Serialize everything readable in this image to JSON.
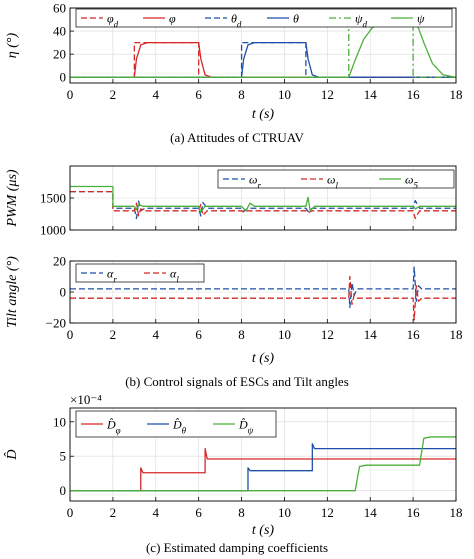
{
  "colors": {
    "red": "#d62728",
    "blue": "#1f4fa8",
    "green": "#4caf3a",
    "axis": "#000000",
    "grid": "#d9d9d9"
  },
  "captions": {
    "a": "(a) Attitudes of CTRUAV",
    "b": "(b) Control signals of ESCs and Tilt angles",
    "c": "(c) Estimated damping coefficients"
  },
  "chart_data": [
    {
      "id": "attitudes",
      "type": "line",
      "xlabel": "t (s)",
      "ylabel": "η (°)",
      "xlim": [
        0,
        18
      ],
      "ylim": [
        -5,
        60
      ],
      "xticks": [
        0,
        2,
        4,
        6,
        8,
        10,
        12,
        14,
        16,
        18
      ],
      "yticks": [
        0,
        20,
        40,
        60
      ],
      "grid": true,
      "legend_position": "top",
      "series": [
        {
          "name": "φ_d",
          "color": "red",
          "dash": "dash",
          "x": [
            0,
            3,
            3,
            6,
            6,
            18
          ],
          "y": [
            0,
            0,
            30,
            30,
            0,
            0
          ]
        },
        {
          "name": "φ",
          "color": "red",
          "dash": "solid",
          "x": [
            0,
            3.0,
            3.1,
            3.3,
            3.6,
            6.0,
            6.1,
            6.3,
            6.6,
            18
          ],
          "y": [
            0,
            0,
            16,
            28,
            30,
            30,
            16,
            2,
            0,
            0
          ]
        },
        {
          "name": "θ_d",
          "color": "blue",
          "dash": "dash",
          "x": [
            0,
            8,
            8,
            11,
            11,
            18
          ],
          "y": [
            0,
            0,
            30,
            30,
            0,
            0
          ]
        },
        {
          "name": "θ",
          "color": "blue",
          "dash": "solid",
          "x": [
            0,
            8.0,
            8.1,
            8.3,
            8.6,
            11.0,
            11.1,
            11.3,
            11.6,
            18
          ],
          "y": [
            0,
            0,
            16,
            28,
            30,
            30,
            16,
            2,
            0,
            0
          ]
        },
        {
          "name": "ψ_d",
          "color": "green",
          "dash": "dashdot",
          "x": [
            0,
            13,
            13,
            16,
            16,
            18
          ],
          "y": [
            0,
            0,
            50,
            50,
            0,
            0
          ]
        },
        {
          "name": "ψ",
          "color": "green",
          "dash": "solid",
          "x": [
            0,
            13.0,
            13.3,
            13.7,
            14.1,
            14.6,
            15.2,
            16.0,
            16.2,
            16.5,
            16.9,
            17.4,
            18
          ],
          "y": [
            0,
            0,
            15,
            33,
            43,
            48,
            50,
            50,
            45,
            30,
            12,
            2,
            0
          ]
        }
      ]
    },
    {
      "id": "pwm",
      "type": "line",
      "xlabel": "",
      "ylabel": "PWM (μs)",
      "xlim": [
        0,
        18
      ],
      "ylim": [
        1000,
        2000
      ],
      "xticks": [
        0,
        2,
        4,
        6,
        8,
        10,
        12,
        14,
        16,
        18
      ],
      "yticks": [
        1000,
        1500
      ],
      "grid": true,
      "legend_position": "top-right",
      "series": [
        {
          "name": "ω_r",
          "color": "blue",
          "dash": "dash",
          "x": [
            0,
            2,
            2,
            3,
            3.1,
            3.2,
            3.3,
            3.5,
            6,
            6.1,
            6.2,
            6.4,
            8,
            8.1,
            8.3,
            11,
            11.1,
            11.3,
            13,
            13.2,
            16,
            16.1,
            16.3,
            18
          ],
          "y": [
            1600,
            1600,
            1340,
            1340,
            1180,
            1450,
            1300,
            1340,
            1340,
            1220,
            1430,
            1340,
            1340,
            1290,
            1340,
            1340,
            1290,
            1340,
            1340,
            1340,
            1340,
            1460,
            1340,
            1340
          ]
        },
        {
          "name": "ω_l",
          "color": "red",
          "dash": "dash",
          "x": [
            0,
            2,
            2,
            3,
            3.1,
            3.2,
            3.3,
            3.5,
            6,
            6.1,
            6.2,
            6.4,
            8,
            8.1,
            8.3,
            11,
            11.1,
            11.3,
            16,
            16.1,
            16.3,
            18
          ],
          "y": [
            1600,
            1600,
            1300,
            1300,
            1420,
            1220,
            1330,
            1300,
            1300,
            1400,
            1230,
            1300,
            1300,
            1280,
            1300,
            1300,
            1270,
            1300,
            1300,
            1180,
            1300,
            1300
          ]
        },
        {
          "name": "ω_5",
          "color": "green",
          "dash": "solid",
          "x": [
            0,
            2,
            2,
            3,
            3.1,
            3.2,
            3.4,
            6,
            6.1,
            6.3,
            8,
            8.2,
            8.4,
            8.6,
            11,
            11.1,
            11.2,
            11.4,
            13,
            13.2,
            16,
            16.1,
            16.3,
            18
          ],
          "y": [
            1680,
            1680,
            1370,
            1370,
            1320,
            1400,
            1370,
            1370,
            1280,
            1370,
            1370,
            1300,
            1420,
            1370,
            1370,
            1510,
            1300,
            1370,
            1370,
            1370,
            1370,
            1330,
            1370,
            1370
          ]
        }
      ]
    },
    {
      "id": "tilt",
      "type": "line",
      "xlabel": "t (s)",
      "ylabel": "Tilt angle (°)",
      "xlim": [
        0,
        18
      ],
      "ylim": [
        -20,
        20
      ],
      "xticks": [
        0,
        2,
        4,
        6,
        8,
        10,
        12,
        14,
        16,
        18
      ],
      "yticks": [
        -20,
        0,
        20
      ],
      "grid": true,
      "legend_position": "top-left",
      "series": [
        {
          "name": "α_r",
          "color": "blue",
          "dash": "dash",
          "x": [
            0,
            13,
            13.05,
            13.15,
            13.25,
            13.4,
            16,
            16.05,
            16.15,
            16.25,
            16.4,
            18
          ],
          "y": [
            2,
            2,
            -10,
            6,
            -2,
            2,
            2,
            16,
            -6,
            4,
            2,
            2
          ]
        },
        {
          "name": "α_l",
          "color": "red",
          "dash": "dash",
          "x": [
            0,
            13,
            13.05,
            13.15,
            13.25,
            13.4,
            16,
            16.05,
            16.15,
            16.25,
            16.4,
            18
          ],
          "y": [
            -4,
            -4,
            10,
            -8,
            -2,
            -4,
            -4,
            -18,
            4,
            -6,
            -4,
            -4
          ]
        }
      ]
    },
    {
      "id": "damping",
      "type": "line",
      "xlabel": "t (s)",
      "ylabel": "D̂",
      "exponent_label": "×10⁻⁴",
      "xlim": [
        0,
        18
      ],
      "ylim": [
        -1.5,
        12
      ],
      "xticks": [
        0,
        2,
        4,
        6,
        8,
        10,
        12,
        14,
        16,
        18
      ],
      "yticks": [
        0,
        5,
        10
      ],
      "grid": true,
      "legend_position": "top-left",
      "series": [
        {
          "name": "D̂_φ",
          "color": "red",
          "dash": "solid",
          "x": [
            0,
            3.3,
            3.3,
            3.4,
            6.3,
            6.3,
            6.4,
            18
          ],
          "y": [
            0,
            0,
            3.3,
            2.6,
            2.6,
            6.1,
            4.6,
            4.6
          ]
        },
        {
          "name": "D̂_θ",
          "color": "blue",
          "dash": "solid",
          "x": [
            0,
            8.3,
            8.3,
            8.4,
            11.3,
            11.3,
            11.4,
            18
          ],
          "y": [
            0,
            0,
            3.3,
            2.9,
            2.9,
            6.8,
            6.1,
            6.1
          ]
        },
        {
          "name": "D̂_ψ",
          "color": "green",
          "dash": "solid",
          "x": [
            0,
            13.3,
            13.5,
            13.8,
            16.3,
            16.5,
            16.8,
            18
          ],
          "y": [
            0,
            0,
            3.5,
            3.7,
            3.7,
            7.6,
            7.8,
            7.8
          ]
        }
      ]
    }
  ]
}
